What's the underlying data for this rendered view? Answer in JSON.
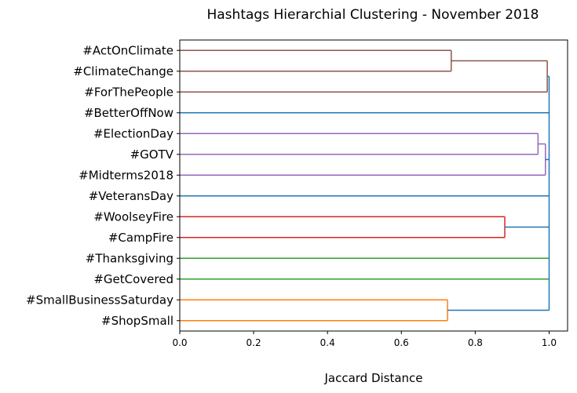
{
  "chart_data": {
    "type": "dendrogram",
    "title": "Hashtags Hierarchial Clustering - November 2018",
    "xlabel": "Jaccard Distance",
    "ylabel": "",
    "xlim": [
      0,
      1.05
    ],
    "xticks": [
      "0.0",
      "0.2",
      "0.4",
      "0.6",
      "0.8",
      "1.0"
    ],
    "orientation": "left",
    "grid": false,
    "leaves": [
      "#ActOnClimate",
      "#ClimateChange",
      "#ForThePeople",
      "#BetterOffNow",
      "#ElectionDay",
      "#GOTV",
      "#Midterms2018",
      "#VeteransDay",
      "#WoolseyFire",
      "#CampFire",
      "#Thanksgiving",
      "#GetCovered",
      "#SmallBusinessSaturday",
      "#ShopSmall"
    ],
    "clusters": [
      {
        "id": 14,
        "members": [
          0,
          1
        ],
        "distance": 0.735,
        "color": "#8c564b"
      },
      {
        "id": 15,
        "members": [
          14,
          2
        ],
        "distance": 0.995,
        "color": "#8c564b"
      },
      {
        "id": 16,
        "members": [
          4,
          5
        ],
        "distance": 0.97,
        "color": "#9467bd"
      },
      {
        "id": 17,
        "members": [
          16,
          6
        ],
        "distance": 0.99,
        "color": "#9467bd"
      },
      {
        "id": 18,
        "members": [
          8,
          9
        ],
        "distance": 0.88,
        "color": "#d62728"
      },
      {
        "id": 19,
        "members": [
          12,
          13
        ],
        "distance": 0.725,
        "color": "#ff7f0e"
      },
      {
        "id": 20,
        "members": [
          15,
          3,
          17,
          7,
          18,
          10,
          11,
          19
        ],
        "distance": 1.0,
        "color": "#1f77b4"
      }
    ],
    "singleton_colors": {
      "3": "#1f77b4",
      "7": "#1f77b4",
      "10": "#2ca02c",
      "11": "#2ca02c"
    }
  }
}
